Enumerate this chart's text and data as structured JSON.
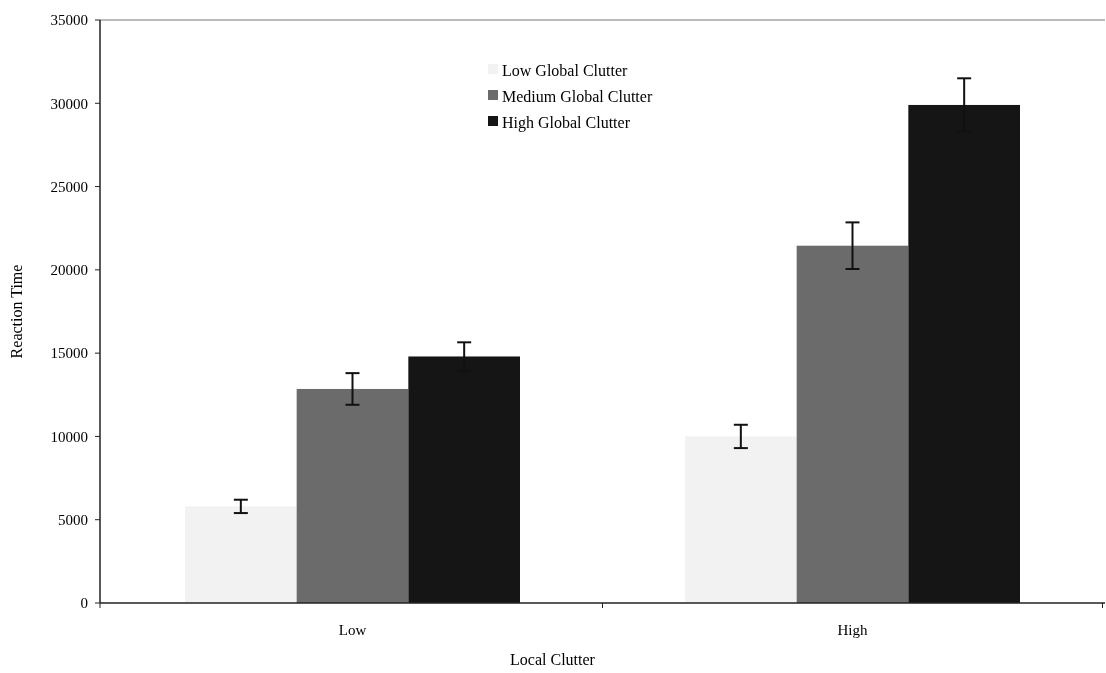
{
  "chart_data": {
    "type": "bar",
    "xlabel": "Local Clutter",
    "ylabel": "Reaction Time",
    "categories": [
      "Low",
      "High"
    ],
    "series": [
      {
        "name": "Low Global Clutter",
        "color": "#f2f2f2",
        "values": [
          5800,
          10000
        ],
        "errors": [
          400,
          700
        ]
      },
      {
        "name": "Medium Global Clutter",
        "color": "#6b6b6b",
        "values": [
          12850,
          21450
        ],
        "errors": [
          950,
          1400
        ]
      },
      {
        "name": "High Global Clutter",
        "color": "#151515",
        "values": [
          14800,
          29900
        ],
        "errors": [
          850,
          1600
        ]
      }
    ],
    "ylim": [
      0,
      35000
    ],
    "yticks": [
      0,
      5000,
      10000,
      15000,
      20000,
      25000,
      30000,
      35000
    ],
    "legend": "top"
  }
}
